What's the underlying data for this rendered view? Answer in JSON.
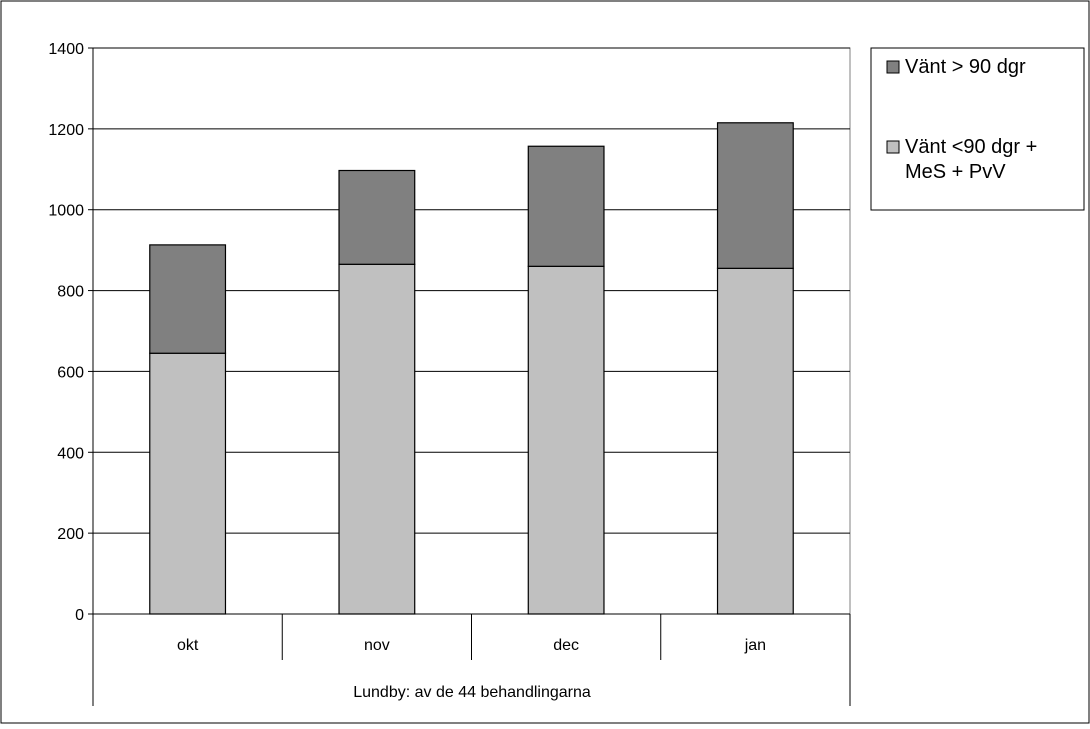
{
  "chart_data": {
    "type": "bar",
    "stacked": true,
    "categories": [
      "okt",
      "nov",
      "dec",
      "jan"
    ],
    "group_label": "Lundby: av de 44 behandlingarna",
    "series": [
      {
        "name": "Vänt <90 dgr + MeS + PvV",
        "legend_lines": [
          "Vänt <90 dgr +",
          "MeS + PvV"
        ],
        "color": "#c0c0c0",
        "values": [
          645,
          865,
          860,
          855
        ]
      },
      {
        "name": "Vänt > 90 dgr",
        "legend_lines": [
          "Vänt > 90 dgr"
        ],
        "color": "#808080",
        "values": [
          268,
          232,
          297,
          360
        ]
      }
    ],
    "ylim": [
      0,
      1400
    ],
    "yticks": [
      "0",
      "200",
      "400",
      "600",
      "800",
      "1000",
      "1200",
      "1400"
    ],
    "grid": true,
    "legend_position": "right",
    "title": "",
    "xlabel": "",
    "ylabel": ""
  }
}
